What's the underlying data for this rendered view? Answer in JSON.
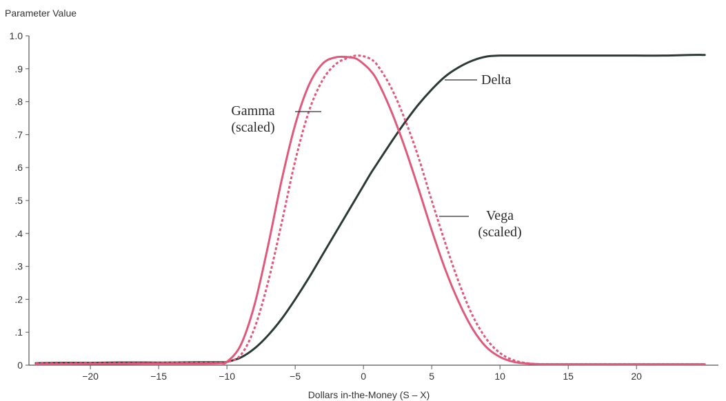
{
  "chart_data": {
    "type": "line",
    "title": "",
    "ylabel": "Parameter Value",
    "xlabel": "Dollars in-the-Money (S – X)",
    "xlim": [
      -24.5,
      26
    ],
    "ylim": [
      0,
      1.0
    ],
    "x_ticks": [
      -20,
      -15,
      -10,
      -5,
      0,
      5,
      10,
      15,
      20
    ],
    "x_tick_labels": [
      "−20",
      "−15",
      "−10",
      "−5",
      "0",
      "5",
      "10",
      "15",
      "20"
    ],
    "y_ticks": [
      0,
      0.1,
      0.2,
      0.3,
      0.4,
      0.5,
      0.6,
      0.7,
      0.8,
      0.9,
      1.0
    ],
    "y_tick_labels": [
      "0",
      ".1",
      ".2",
      ".3",
      ".4",
      ".5",
      ".6",
      ".7",
      ".8",
      ".9",
      "1.0"
    ],
    "grid": false,
    "x": [
      -24,
      -22,
      -20,
      -18,
      -16,
      -14,
      -12,
      -10.5,
      -10,
      -9,
      -8,
      -7,
      -6,
      -5,
      -4,
      -3,
      -2,
      -1,
      -0.5,
      0,
      0.5,
      1,
      2,
      3,
      4,
      5,
      6,
      7,
      8,
      9,
      10,
      11,
      12,
      13,
      14,
      16,
      18,
      20,
      22,
      24,
      25
    ],
    "series": [
      {
        "name": "Delta",
        "color": "#2b3a36",
        "dash": "solid",
        "values": [
          0.006,
          0.007,
          0.007,
          0.008,
          0.008,
          0.008,
          0.009,
          0.009,
          0.01,
          0.023,
          0.05,
          0.09,
          0.14,
          0.2,
          0.265,
          0.335,
          0.405,
          0.475,
          0.51,
          0.545,
          0.58,
          0.612,
          0.675,
          0.735,
          0.79,
          0.837,
          0.877,
          0.905,
          0.925,
          0.937,
          0.94,
          0.94,
          0.94,
          0.94,
          0.94,
          0.94,
          0.94,
          0.94,
          0.94,
          0.942,
          0.942
        ]
      },
      {
        "name": "Gamma",
        "color": "#e0587a",
        "dash": "solid",
        "values": [
          0.003,
          0.003,
          0.004,
          0.004,
          0.005,
          0.005,
          0.005,
          0.006,
          0.01,
          0.06,
          0.18,
          0.36,
          0.56,
          0.73,
          0.85,
          0.915,
          0.935,
          0.935,
          0.93,
          0.915,
          0.895,
          0.865,
          0.775,
          0.665,
          0.54,
          0.41,
          0.29,
          0.19,
          0.11,
          0.055,
          0.025,
          0.01,
          0.005,
          0.003,
          0.003,
          0.003,
          0.003,
          0.003,
          0.003,
          0.003,
          0.003
        ]
      },
      {
        "name": "Vega",
        "color": "#e0587a",
        "dash": "dotted",
        "values": [
          0.005,
          0.005,
          0.006,
          0.006,
          0.006,
          0.007,
          0.007,
          0.007,
          0.01,
          0.03,
          0.11,
          0.25,
          0.43,
          0.62,
          0.77,
          0.865,
          0.915,
          0.935,
          0.94,
          0.938,
          0.93,
          0.912,
          0.845,
          0.75,
          0.635,
          0.5,
          0.37,
          0.25,
          0.15,
          0.08,
          0.037,
          0.015,
          0.006,
          0.003,
          0.003,
          0.003,
          0.003,
          0.003,
          0.003,
          0.003,
          0.003
        ]
      }
    ],
    "annotations": {
      "gamma_line1": "Gamma",
      "gamma_line2": "(scaled)",
      "delta": "Delta",
      "vega_line1": "Vega",
      "vega_line2": "(scaled)"
    }
  }
}
